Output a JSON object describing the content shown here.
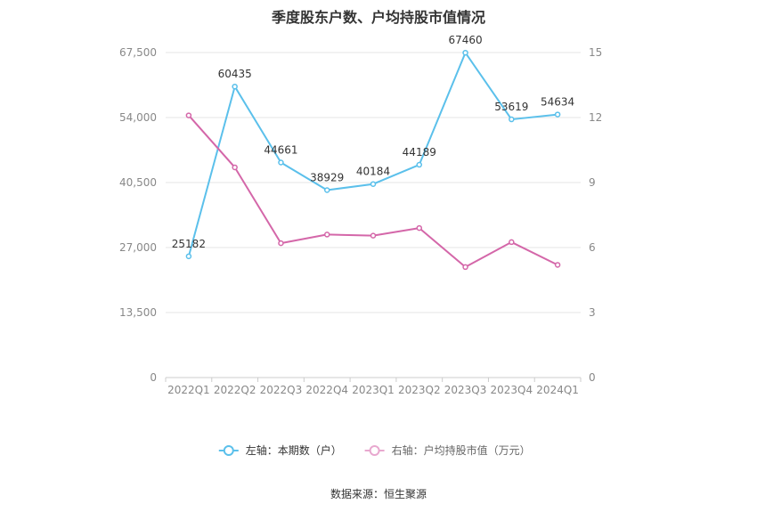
{
  "chart_data": {
    "type": "line",
    "title": "季度股东户数、户均持股市值情况",
    "categories": [
      "2022Q1",
      "2022Q2",
      "2022Q3",
      "2022Q4",
      "2023Q1",
      "2023Q2",
      "2023Q3",
      "2023Q4",
      "2024Q1"
    ],
    "left_axis": {
      "ticks": [
        "0",
        "13,500",
        "27,000",
        "40,500",
        "54,000",
        "67,500"
      ],
      "ylim": [
        0,
        67500
      ]
    },
    "right_axis": {
      "ticks": [
        "0",
        "3",
        "6",
        "9",
        "12",
        "15"
      ],
      "ylim": [
        0,
        15
      ]
    },
    "series": [
      {
        "name": "左轴：本期数（户）",
        "axis": "left",
        "color": "#5bc0eb",
        "values": [
          25182,
          60435,
          44661,
          38929,
          40184,
          44189,
          67460,
          53619,
          54634
        ],
        "labels": [
          "25182",
          "60435",
          "44661",
          "38929",
          "40184",
          "44189",
          "67460",
          "53619",
          "54634"
        ]
      },
      {
        "name": "右轴：户均持股市值（万元）",
        "axis": "right",
        "color": "#d467a9",
        "values": [
          12.1,
          9.7,
          6.2,
          6.6,
          6.55,
          6.9,
          5.1,
          6.25,
          5.2
        ]
      }
    ],
    "grid": true,
    "legend_position": "bottom"
  },
  "footer": {
    "source": "数据来源：恒生聚源"
  }
}
